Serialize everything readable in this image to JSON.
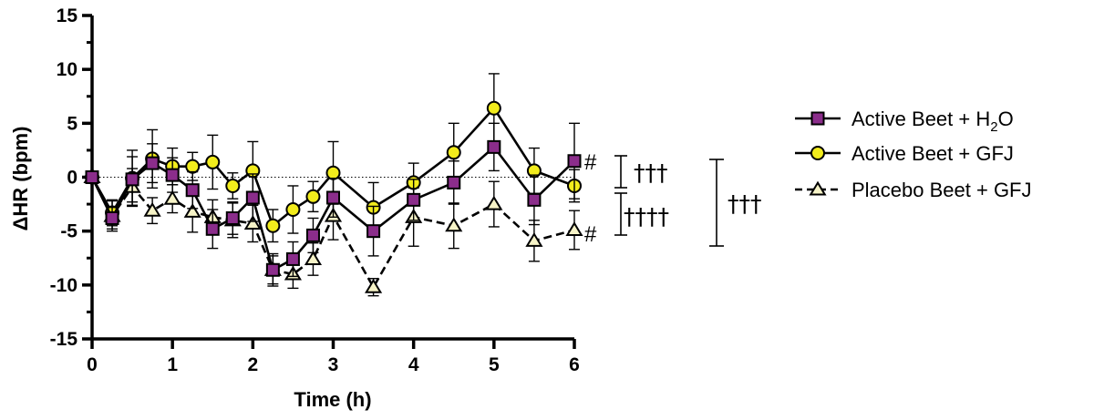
{
  "chart_data": {
    "type": "line",
    "xlabel": "Time (h)",
    "ylabel": "ΔHR (bpm)",
    "xlim": [
      0,
      6
    ],
    "ylim": [
      -15,
      15
    ],
    "xticks": [
      0,
      1,
      2,
      3,
      4,
      5,
      6
    ],
    "yticks": [
      -15,
      -10,
      -5,
      0,
      5,
      10,
      15
    ],
    "reference_line": {
      "y": 0,
      "style": "dotted"
    },
    "legend_position": "right",
    "x": [
      0,
      0.25,
      0.5,
      0.75,
      1,
      1.25,
      1.5,
      1.75,
      2,
      2.25,
      2.5,
      2.75,
      3,
      3.5,
      4,
      4.5,
      5,
      5.5,
      6
    ],
    "series": [
      {
        "name": "Active Beet + H2O",
        "legend_main": "Active Beet + H",
        "legend_sub": "2",
        "legend_tail": "O",
        "marker": "square",
        "fill": "#8b2d8b",
        "line": "solid",
        "values": [
          0,
          -3.8,
          -0.2,
          1.3,
          0.2,
          -1.2,
          -4.8,
          -3.8,
          -1.9,
          -8.6,
          -7.6,
          -5.4,
          -1.9,
          -5.0,
          -2.1,
          -0.5,
          2.8,
          -2.1,
          1.5
        ],
        "errors": [
          0,
          1.0,
          2.1,
          1.8,
          1.6,
          1.7,
          1.8,
          1.5,
          2.2,
          1.5,
          1.6,
          1.6,
          1.8,
          2.3,
          1.9,
          2.0,
          2.2,
          2.3,
          3.5
        ]
      },
      {
        "name": "Active Beet + GFJ",
        "legend_main": "Active Beet + GFJ",
        "legend_sub": "",
        "legend_tail": "",
        "marker": "circle",
        "fill": "#f2ec1c",
        "line": "solid",
        "values": [
          0,
          -3.3,
          -0.1,
          1.7,
          1.0,
          1.0,
          1.4,
          -0.8,
          0.6,
          -4.5,
          -3.0,
          -1.8,
          0.4,
          -2.8,
          -0.5,
          2.3,
          6.4,
          0.6,
          -0.8
        ],
        "errors": [
          0,
          1.2,
          2.6,
          2.7,
          1.7,
          1.3,
          2.5,
          1.2,
          2.7,
          1.5,
          2.2,
          1.4,
          2.9,
          2.3,
          1.8,
          2.7,
          3.2,
          2.1,
          1.5
        ]
      },
      {
        "name": "Placebo Beet + GFJ",
        "legend_main": "Placebo Beet + GFJ",
        "legend_sub": "",
        "legend_tail": "",
        "marker": "triangle",
        "fill": "#f7f4c8",
        "line": "dashed",
        "values": [
          0,
          -3.6,
          -0.9,
          -3.1,
          -2.0,
          -3.2,
          -3.7,
          -4.0,
          -4.3,
          -8.6,
          -9.0,
          -7.6,
          -3.6,
          -10.2,
          -3.7,
          -4.5,
          -2.5,
          -5.9,
          -4.9
        ],
        "errors": [
          0,
          1.4,
          1.7,
          1.2,
          1.3,
          1.9,
          1.6,
          1.6,
          1.7,
          1.3,
          1.3,
          1.5,
          2.2,
          0.8,
          2.7,
          2.1,
          2.1,
          1.9,
          1.8
        ]
      }
    ],
    "annotations": {
      "hash_top": "#",
      "hash_bottom": "#",
      "dagger_1": "†††",
      "dagger_2": "††††",
      "dagger_3": "†††"
    }
  }
}
